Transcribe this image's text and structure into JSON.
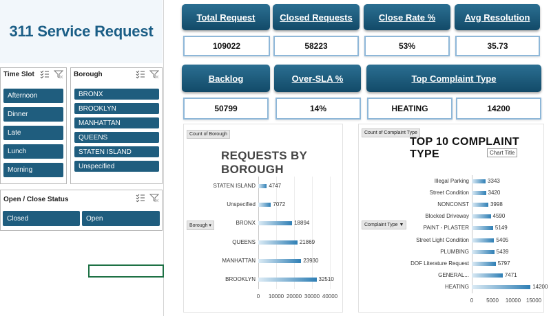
{
  "dashboard": {
    "title": "311 Service Request"
  },
  "slicers": {
    "time_slot": {
      "title": "Time Slot",
      "items": [
        "Afternoon",
        "Dinner",
        "Late",
        "Lunch",
        "Morning"
      ]
    },
    "borough": {
      "title": "Borough",
      "items": [
        "BRONX",
        "BROOKLYN",
        "MANHATTAN",
        "QUEENS",
        "STATEN ISLAND",
        "Unspecified"
      ]
    },
    "status": {
      "title": "Open / Close Status",
      "items": [
        "Closed",
        "Open"
      ]
    }
  },
  "kpis": [
    {
      "label": "Total Request",
      "value": "109022"
    },
    {
      "label": "Closed Requests",
      "value": "58223"
    },
    {
      "label": "Close Rate %",
      "value": "53%"
    },
    {
      "label": "Avg Resolution",
      "value": "35.73"
    },
    {
      "label": "Backlog",
      "value": "50799"
    },
    {
      "label": "Over-SLA %",
      "value": "14%"
    },
    {
      "label": "Top Complaint Type",
      "value": "HEATING",
      "value2": "14200"
    }
  ],
  "chart_data": [
    {
      "type": "bar",
      "orientation": "horizontal",
      "title": "REQUESTS BY BOROUGH",
      "field_button": "Count of Borough",
      "axis_field_button": "Borough",
      "categories": [
        "STATEN ISLAND",
        "Unspecified",
        "BRONX",
        "QUEENS",
        "MANHATTAN",
        "BROOKLYN"
      ],
      "values": [
        4747,
        7072,
        18894,
        21869,
        23930,
        32510
      ],
      "xlim": [
        0,
        40000
      ],
      "xticks": [
        "0",
        "10000",
        "20000",
        "30000",
        "40000"
      ],
      "grid": true,
      "bar_color": "#2f7fb5"
    },
    {
      "type": "bar",
      "orientation": "horizontal",
      "title": "TOP 10 COMPLAINT TYPE",
      "tooltip": "Chart Title",
      "field_button": "Count of Complaint Type",
      "axis_field_button": "Complaint Type",
      "categories": [
        "Illegal Parking",
        "Street Condition",
        "NONCONST",
        "Blocked Driveway",
        "PAINT - PLASTER",
        "Street Light Condition",
        "PLUMBING",
        "DOF Literature Request",
        "GENERAL...",
        "HEATING"
      ],
      "values": [
        3343,
        3420,
        3998,
        4590,
        5149,
        5405,
        5439,
        5797,
        7471,
        14200
      ],
      "xlim": [
        0,
        15000
      ],
      "xticks": [
        "0",
        "5000",
        "10000",
        "15000"
      ],
      "grid": false,
      "bar_color": "#2f7fb5"
    }
  ]
}
